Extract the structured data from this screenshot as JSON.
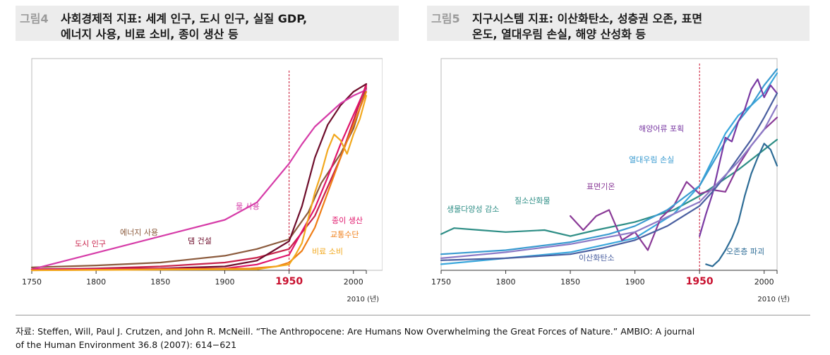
{
  "figure1": {
    "label": "그림4",
    "title_line1": "사회경제적 지표: 세계 인구, 도시 인구, 실질 GDP,",
    "title_line2": "에너지 사용, 비료 소비, 종이 생산 등"
  },
  "figure2": {
    "label": "그림5",
    "title_line1": "지구시스템 지표: 이산화탄소, 성층권 오존, 표면",
    "title_line2": "온도, 열대우림 손실, 해양 산성화 등"
  },
  "source_line1": "자료: Steffen, Will, Paul J. Crutzen, and John R. McNeill. “The Anthropocene: Are Humans Now Overwhelming the Great Forces of Nature.” AMBIO: A journal",
  "source_line2": "of the Human Environment 36.8 (2007): 614−621",
  "chart_data": [
    {
      "type": "line",
      "xlim": [
        1750,
        2010
      ],
      "ylim": [
        0,
        100
      ],
      "x_ticks": [
        1750,
        1800,
        1850,
        1900,
        1950,
        2000
      ],
      "x_tick_labels": [
        "1750",
        "1800",
        "1850",
        "1900",
        "1950",
        "2000"
      ],
      "x_unit_label": "2010 (년)",
      "highlight_year": 1950,
      "highlight_color": "#c8102e",
      "series": [
        {
          "name": "도시 인구",
          "color": "#c8234b",
          "x": [
            1750,
            1800,
            1850,
            1900,
            1925,
            1950,
            1970,
            1990,
            2010
          ],
          "y": [
            0.5,
            1,
            2,
            4,
            6.5,
            11,
            28,
            58,
            96
          ]
        },
        {
          "name": "에너지 사용",
          "color": "#8b5a3c",
          "x": [
            1750,
            1800,
            1850,
            1900,
            1925,
            1950,
            1965,
            1975,
            1990,
            2000,
            2010
          ],
          "y": [
            1.5,
            2.5,
            4,
            7.5,
            11,
            16,
            30,
            45,
            60,
            73,
            94
          ]
        },
        {
          "name": "댐 건설",
          "color": "#6e0d2b",
          "x": [
            1750,
            1850,
            1900,
            1925,
            1950,
            1960,
            1970,
            1980,
            1990,
            2000,
            2010
          ],
          "y": [
            0.5,
            1,
            2,
            5,
            15,
            33,
            58,
            75,
            85,
            92,
            96
          ]
        },
        {
          "name": "물 사용",
          "color": "#d63ca8",
          "x": [
            1750,
            1900,
            1925,
            1950,
            1960,
            1970,
            1980,
            1990,
            2000,
            2010
          ],
          "y": [
            0.5,
            26,
            35,
            55,
            65,
            74,
            80,
            86,
            90,
            93
          ]
        },
        {
          "name": "종이 생산",
          "color": "#e0146a",
          "x": [
            1750,
            1900,
            1925,
            1950,
            1960,
            1970,
            1980,
            1990,
            2000,
            2010
          ],
          "y": [
            0.5,
            1,
            3,
            8,
            20,
            32,
            48,
            65,
            80,
            95
          ]
        },
        {
          "name": "교통수단",
          "color": "#ef7d15",
          "x": [
            1750,
            1920,
            1940,
            1950,
            1960,
            1970,
            1980,
            1990,
            2000,
            2010
          ],
          "y": [
            0,
            1,
            2,
            4,
            10,
            22,
            40,
            58,
            75,
            92
          ]
        },
        {
          "name": "비료 소비",
          "color": "#f2a81d",
          "x": [
            1750,
            1925,
            1940,
            1950,
            1955,
            1960,
            1965,
            1970,
            1975,
            1980,
            1985,
            1990,
            1995,
            2000,
            2005,
            2010
          ],
          "y": [
            0,
            0.5,
            2,
            3,
            8,
            14,
            27,
            40,
            50,
            62,
            70,
            67,
            60,
            70,
            78,
            90
          ]
        }
      ]
    },
    {
      "type": "line",
      "xlim": [
        1750,
        2010
      ],
      "ylim": [
        0,
        100
      ],
      "x_ticks": [
        1750,
        1800,
        1850,
        1900,
        1950,
        2000
      ],
      "x_tick_labels": [
        "1750",
        "1800",
        "1850",
        "1900",
        "1950",
        "2000"
      ],
      "x_unit_label": "2010 (년)",
      "highlight_year": 1950,
      "highlight_color": "#c8102e",
      "series": [
        {
          "name": "생물다양성 감소",
          "color": "#2e8e86",
          "x": [
            1750,
            1760,
            1780,
            1800,
            1830,
            1850,
            1870,
            1900,
            1930,
            1950,
            1980,
            2010
          ],
          "y": [
            18,
            21,
            20,
            19,
            20,
            17,
            20,
            24,
            30,
            37,
            50,
            65
          ]
        },
        {
          "name": "질소산화물",
          "color": "#3aa7dc",
          "x": [
            1750,
            1800,
            1850,
            1900,
            1930,
            1950,
            1960,
            1970,
            1980,
            1990,
            2000,
            2010
          ],
          "y": [
            3,
            6,
            9,
            16,
            28,
            42,
            55,
            68,
            77,
            82,
            88,
            98
          ]
        },
        {
          "name": "표면기온",
          "color": "#8a3a97",
          "x": [
            1850,
            1860,
            1870,
            1880,
            1890,
            1900,
            1910,
            1920,
            1930,
            1940,
            1950,
            1960,
            1970,
            1980,
            1990,
            2000,
            2010
          ],
          "y": [
            27,
            20,
            27,
            30,
            15,
            19,
            10,
            26,
            32,
            44,
            38,
            40,
            39,
            52,
            62,
            70,
            76
          ]
        },
        {
          "name": "열대우림 손실",
          "color": "#3a9bd0",
          "x": [
            1750,
            1800,
            1850,
            1880,
            1900,
            1925,
            1950,
            1960,
            1970,
            1980,
            1990,
            2000,
            2010
          ],
          "y": [
            8,
            10,
            14,
            18,
            22,
            30,
            42,
            53,
            64,
            74,
            82,
            92,
            100
          ]
        },
        {
          "name": "해양어류 포획",
          "color": "#7a3aa3",
          "x": [
            1950,
            1955,
            1960,
            1965,
            1970,
            1975,
            1980,
            1985,
            1990,
            1995,
            2000,
            2005,
            2010
          ],
          "y": [
            17,
            28,
            38,
            52,
            66,
            64,
            74,
            80,
            90,
            95,
            86,
            92,
            88
          ]
        },
        {
          "name": "이산화탄소",
          "color": "#4a5fa0",
          "x": [
            1750,
            1800,
            1850,
            1875,
            1900,
            1925,
            1950,
            1960,
            1970,
            1980,
            1990,
            2000,
            2010
          ],
          "y": [
            5,
            6,
            8,
            11,
            15,
            22,
            32,
            39,
            47,
            56,
            65,
            76,
            88
          ]
        },
        {
          "name": "오존층 파괴",
          "color": "#2d6c96",
          "x": [
            1955,
            1960,
            1965,
            1970,
            1975,
            1980,
            1985,
            1990,
            1995,
            2000,
            2005,
            2010
          ],
          "y": [
            3,
            2,
            5,
            10,
            16,
            24,
            37,
            48,
            56,
            63,
            60,
            52
          ]
        },
        {
          "name": "",
          "color": "#8c7ac6",
          "x": [
            1750,
            1800,
            1850,
            1900,
            1950,
            1980,
            2000,
            2010
          ],
          "y": [
            6,
            9,
            13,
            19,
            34,
            54,
            70,
            82
          ]
        }
      ]
    }
  ],
  "labels1": {
    "urban": "도시 인구",
    "energy": "에너지 사용",
    "dam": "댐 건설",
    "water": "물 사용",
    "paper": "종이 생산",
    "transport": "교통수단",
    "fertilizer": "비료 소비"
  },
  "labels2": {
    "biodiversity": "생물다양성 감소",
    "nitrogen": "질소산화물",
    "temperature": "표면기온",
    "rainforest": "열대우림 손실",
    "fisheries": "해양어류 포획",
    "co2": "이산화탄소",
    "ozone": "오존층 파괴"
  }
}
